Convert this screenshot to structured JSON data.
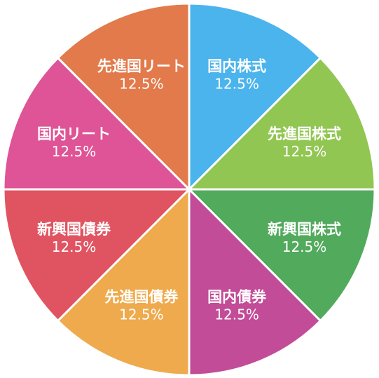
{
  "chart_data": {
    "type": "pie",
    "title": "",
    "unit": "%",
    "slices": [
      {
        "label": "国内株式",
        "value": 12.5,
        "value_label": "12.5%",
        "color": "#4cb4ec"
      },
      {
        "label": "先進国株式",
        "value": 12.5,
        "value_label": "12.5%",
        "color": "#92c652"
      },
      {
        "label": "新興国株式",
        "value": 12.5,
        "value_label": "12.5%",
        "color": "#52aa5c"
      },
      {
        "label": "国内債券",
        "value": 12.5,
        "value_label": "12.5%",
        "color": "#c24c98"
      },
      {
        "label": "先進国債券",
        "value": 12.5,
        "value_label": "12.5%",
        "color": "#eeaa4c"
      },
      {
        "label": "新興国債券",
        "value": 12.5,
        "value_label": "12.5%",
        "color": "#e05462"
      },
      {
        "label": "国内リート",
        "value": 12.5,
        "value_label": "12.5%",
        "color": "#de5496"
      },
      {
        "label": "先進国リート",
        "value": 12.5,
        "value_label": "12.5%",
        "color": "#e27a4c"
      }
    ]
  }
}
